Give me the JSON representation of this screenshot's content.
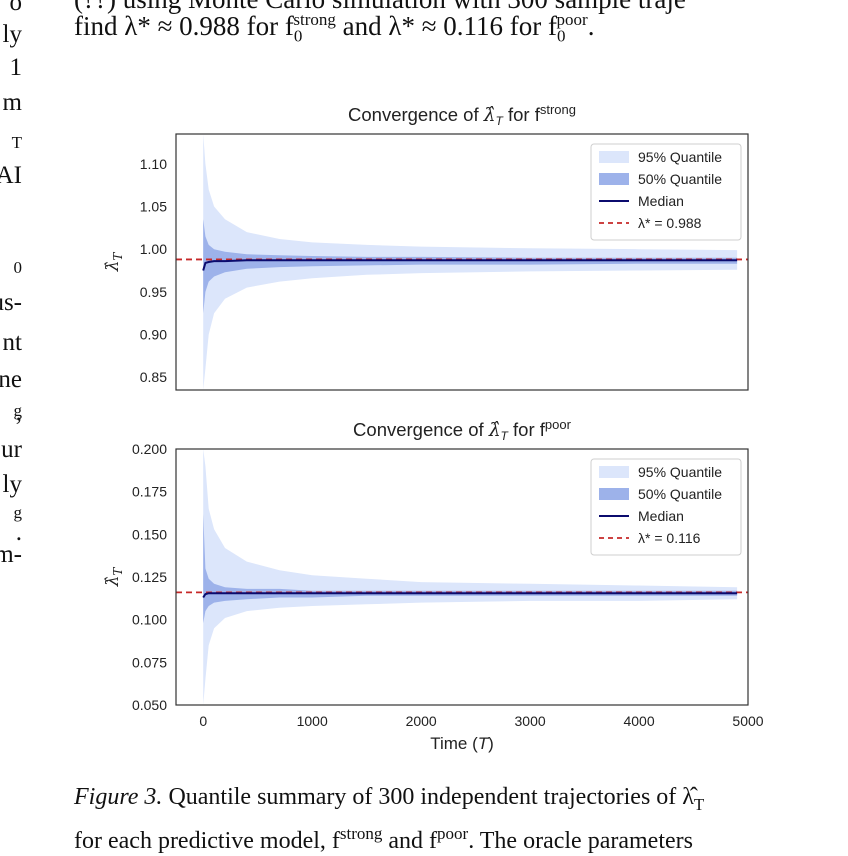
{
  "left_fragments": [
    "o",
    "ly",
    "1",
    "m",
    "T",
    "AI",
    "0",
    "us-",
    "nt",
    "ne",
    "g",
    ",",
    "ur",
    "ly",
    "g",
    ".",
    "m-"
  ],
  "top_text": {
    "line1": "(??) using Monte Carlo simulation with 300 sample traje",
    "line2_prefix": "find λ* ≈ 0.988 for f",
    "line2_sup1": "strong",
    "line2_sub1": "0",
    "line2_mid": " and λ* ≈ 0.116 for f",
    "line2_sup2": "poor",
    "line2_sub2": "0",
    "line2_end": "."
  },
  "chart_data": [
    {
      "type": "area",
      "title": "Convergence of λ̂_T for f^strong",
      "title_main": "Convergence of ",
      "title_sym": "λ̂",
      "title_sub": "T",
      "title_for": " for f",
      "title_sup": "strong",
      "ylabel": "λ̂_T",
      "ylim": [
        0.835,
        1.135
      ],
      "yticks": [
        "0.85",
        "0.90",
        "0.95",
        "1.00",
        "1.05",
        "1.10"
      ],
      "ytick_values": [
        0.85,
        0.9,
        0.95,
        1.0,
        1.05,
        1.1
      ],
      "xlim": [
        -250,
        5000
      ],
      "xticks": [],
      "lambda_star": 0.988,
      "legend": [
        "95% Quantile",
        "50% Quantile",
        "Median",
        "λ* = 0.988"
      ],
      "legend_placement": "top-right",
      "series": [
        {
          "name": "95% Quantile",
          "x": [
            0,
            20,
            50,
            100,
            200,
            400,
            700,
            1000,
            1500,
            2000,
            3000,
            4000,
            4900
          ],
          "upper": [
            1.135,
            1.1,
            1.07,
            1.05,
            1.035,
            1.02,
            1.012,
            1.008,
            1.005,
            1.003,
            1.001,
            1.0,
            0.999
          ],
          "lower": [
            0.835,
            0.86,
            0.9,
            0.925,
            0.942,
            0.955,
            0.962,
            0.966,
            0.97,
            0.972,
            0.974,
            0.975,
            0.976
          ]
        },
        {
          "name": "50% Quantile",
          "x": [
            0,
            20,
            50,
            100,
            200,
            400,
            700,
            1000,
            1500,
            2000,
            3000,
            4000,
            4900
          ],
          "upper": [
            1.035,
            1.015,
            1.005,
            1.0,
            0.997,
            0.994,
            0.993,
            0.992,
            0.991,
            0.991,
            0.99,
            0.99,
            0.99
          ],
          "lower": [
            0.925,
            0.95,
            0.962,
            0.968,
            0.973,
            0.977,
            0.979,
            0.98,
            0.981,
            0.982,
            0.982,
            0.983,
            0.983
          ]
        },
        {
          "name": "Median",
          "x": [
            0,
            20,
            50,
            100,
            200,
            400,
            700,
            1000,
            2000,
            3000,
            4000,
            4900
          ],
          "values": [
            0.975,
            0.984,
            0.985,
            0.986,
            0.986,
            0.987,
            0.987,
            0.987,
            0.987,
            0.987,
            0.987,
            0.987
          ]
        }
      ],
      "color_95": "#dce6fb",
      "color_50": "#9db2ea",
      "color_median": "#0b0b6e",
      "color_lambda": "#c62828"
    },
    {
      "type": "area",
      "title": "Convergence of λ̂_T for f^poor",
      "title_main": "Convergence of ",
      "title_sym": "λ̂",
      "title_sub": "T",
      "title_for": " for f",
      "title_sup": "poor",
      "ylabel": "λ̂_T",
      "xlabel": "Time (T)",
      "xlabel_main": "Time (",
      "xlabel_sym": "T",
      "xlabel_end": ")",
      "ylim": [
        0.05,
        0.2
      ],
      "yticks": [
        "0.050",
        "0.075",
        "0.100",
        "0.125",
        "0.150",
        "0.175",
        "0.200"
      ],
      "ytick_values": [
        0.05,
        0.075,
        0.1,
        0.125,
        0.15,
        0.175,
        0.2
      ],
      "xlim": [
        -250,
        5000
      ],
      "xticks": [
        "0",
        "1000",
        "2000",
        "3000",
        "4000",
        "5000"
      ],
      "xtick_values": [
        0,
        1000,
        2000,
        3000,
        4000,
        5000
      ],
      "lambda_star": 0.116,
      "legend": [
        "95% Quantile",
        "50% Quantile",
        "Median",
        "λ* = 0.116"
      ],
      "legend_placement": "top-right",
      "series": [
        {
          "name": "95% Quantile",
          "x": [
            0,
            20,
            50,
            100,
            200,
            400,
            700,
            1000,
            1500,
            2000,
            3000,
            4000,
            4900
          ],
          "upper": [
            0.2,
            0.19,
            0.165,
            0.153,
            0.142,
            0.134,
            0.129,
            0.126,
            0.124,
            0.122,
            0.121,
            0.12,
            0.119
          ],
          "lower": [
            0.05,
            0.065,
            0.085,
            0.095,
            0.101,
            0.105,
            0.107,
            0.108,
            0.109,
            0.11,
            0.111,
            0.111,
            0.112
          ]
        },
        {
          "name": "50% Quantile",
          "x": [
            0,
            20,
            50,
            100,
            200,
            400,
            700,
            1000,
            1500,
            2000,
            3000,
            4000,
            4900
          ],
          "upper": [
            0.162,
            0.13,
            0.124,
            0.121,
            0.119,
            0.118,
            0.118,
            0.117,
            0.117,
            0.117,
            0.117,
            0.117,
            0.117
          ],
          "lower": [
            0.098,
            0.105,
            0.108,
            0.11,
            0.111,
            0.112,
            0.113,
            0.113,
            0.114,
            0.114,
            0.114,
            0.114,
            0.114
          ]
        },
        {
          "name": "Median",
          "x": [
            0,
            20,
            50,
            100,
            200,
            400,
            700,
            1000,
            2000,
            3000,
            4000,
            4900
          ],
          "values": [
            0.113,
            0.115,
            0.1155,
            0.1155,
            0.1155,
            0.1155,
            0.1155,
            0.1155,
            0.1155,
            0.1155,
            0.1155,
            0.1155
          ]
        }
      ],
      "color_95": "#dce6fb",
      "color_50": "#9db2ea",
      "color_median": "#0b0b6e",
      "color_lambda": "#c62828"
    }
  ],
  "caption": {
    "label": "Figure 3.",
    "text1": " Quantile summary of 300 independent trajectories of λ̂",
    "text1_sub": "T",
    "line2": "for each predictive model, f",
    "sup_strong": "strong",
    "and": " and f",
    "sup_poor": "poor",
    "line2_end": ". The oracle parameters"
  }
}
